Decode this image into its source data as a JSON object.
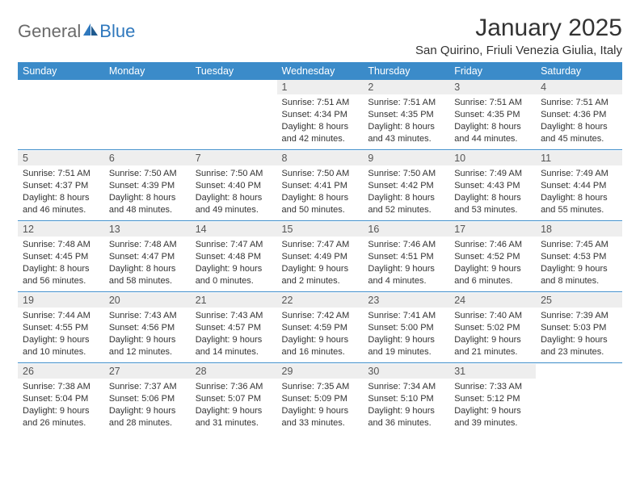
{
  "brand": {
    "part1": "General",
    "part2": "Blue"
  },
  "title": "January 2025",
  "location": "San Quirino, Friuli Venezia Giulia, Italy",
  "columns": [
    "Sunday",
    "Monday",
    "Tuesday",
    "Wednesday",
    "Thursday",
    "Friday",
    "Saturday"
  ],
  "colors": {
    "header_bg": "#3b8bc9",
    "header_text": "#ffffff",
    "daynum_bg": "#eeeeee",
    "text": "#333333",
    "rule": "#3b8bc9"
  },
  "weeks": [
    [
      null,
      null,
      null,
      {
        "n": "1",
        "sunrise": "7:51 AM",
        "sunset": "4:34 PM",
        "dl1": "8 hours",
        "dl2": "and 42 minutes."
      },
      {
        "n": "2",
        "sunrise": "7:51 AM",
        "sunset": "4:35 PM",
        "dl1": "8 hours",
        "dl2": "and 43 minutes."
      },
      {
        "n": "3",
        "sunrise": "7:51 AM",
        "sunset": "4:35 PM",
        "dl1": "8 hours",
        "dl2": "and 44 minutes."
      },
      {
        "n": "4",
        "sunrise": "7:51 AM",
        "sunset": "4:36 PM",
        "dl1": "8 hours",
        "dl2": "and 45 minutes."
      }
    ],
    [
      {
        "n": "5",
        "sunrise": "7:51 AM",
        "sunset": "4:37 PM",
        "dl1": "8 hours",
        "dl2": "and 46 minutes."
      },
      {
        "n": "6",
        "sunrise": "7:50 AM",
        "sunset": "4:39 PM",
        "dl1": "8 hours",
        "dl2": "and 48 minutes."
      },
      {
        "n": "7",
        "sunrise": "7:50 AM",
        "sunset": "4:40 PM",
        "dl1": "8 hours",
        "dl2": "and 49 minutes."
      },
      {
        "n": "8",
        "sunrise": "7:50 AM",
        "sunset": "4:41 PM",
        "dl1": "8 hours",
        "dl2": "and 50 minutes."
      },
      {
        "n": "9",
        "sunrise": "7:50 AM",
        "sunset": "4:42 PM",
        "dl1": "8 hours",
        "dl2": "and 52 minutes."
      },
      {
        "n": "10",
        "sunrise": "7:49 AM",
        "sunset": "4:43 PM",
        "dl1": "8 hours",
        "dl2": "and 53 minutes."
      },
      {
        "n": "11",
        "sunrise": "7:49 AM",
        "sunset": "4:44 PM",
        "dl1": "8 hours",
        "dl2": "and 55 minutes."
      }
    ],
    [
      {
        "n": "12",
        "sunrise": "7:48 AM",
        "sunset": "4:45 PM",
        "dl1": "8 hours",
        "dl2": "and 56 minutes."
      },
      {
        "n": "13",
        "sunrise": "7:48 AM",
        "sunset": "4:47 PM",
        "dl1": "8 hours",
        "dl2": "and 58 minutes."
      },
      {
        "n": "14",
        "sunrise": "7:47 AM",
        "sunset": "4:48 PM",
        "dl1": "9 hours",
        "dl2": "and 0 minutes."
      },
      {
        "n": "15",
        "sunrise": "7:47 AM",
        "sunset": "4:49 PM",
        "dl1": "9 hours",
        "dl2": "and 2 minutes."
      },
      {
        "n": "16",
        "sunrise": "7:46 AM",
        "sunset": "4:51 PM",
        "dl1": "9 hours",
        "dl2": "and 4 minutes."
      },
      {
        "n": "17",
        "sunrise": "7:46 AM",
        "sunset": "4:52 PM",
        "dl1": "9 hours",
        "dl2": "and 6 minutes."
      },
      {
        "n": "18",
        "sunrise": "7:45 AM",
        "sunset": "4:53 PM",
        "dl1": "9 hours",
        "dl2": "and 8 minutes."
      }
    ],
    [
      {
        "n": "19",
        "sunrise": "7:44 AM",
        "sunset": "4:55 PM",
        "dl1": "9 hours",
        "dl2": "and 10 minutes."
      },
      {
        "n": "20",
        "sunrise": "7:43 AM",
        "sunset": "4:56 PM",
        "dl1": "9 hours",
        "dl2": "and 12 minutes."
      },
      {
        "n": "21",
        "sunrise": "7:43 AM",
        "sunset": "4:57 PM",
        "dl1": "9 hours",
        "dl2": "and 14 minutes."
      },
      {
        "n": "22",
        "sunrise": "7:42 AM",
        "sunset": "4:59 PM",
        "dl1": "9 hours",
        "dl2": "and 16 minutes."
      },
      {
        "n": "23",
        "sunrise": "7:41 AM",
        "sunset": "5:00 PM",
        "dl1": "9 hours",
        "dl2": "and 19 minutes."
      },
      {
        "n": "24",
        "sunrise": "7:40 AM",
        "sunset": "5:02 PM",
        "dl1": "9 hours",
        "dl2": "and 21 minutes."
      },
      {
        "n": "25",
        "sunrise": "7:39 AM",
        "sunset": "5:03 PM",
        "dl1": "9 hours",
        "dl2": "and 23 minutes."
      }
    ],
    [
      {
        "n": "26",
        "sunrise": "7:38 AM",
        "sunset": "5:04 PM",
        "dl1": "9 hours",
        "dl2": "and 26 minutes."
      },
      {
        "n": "27",
        "sunrise": "7:37 AM",
        "sunset": "5:06 PM",
        "dl1": "9 hours",
        "dl2": "and 28 minutes."
      },
      {
        "n": "28",
        "sunrise": "7:36 AM",
        "sunset": "5:07 PM",
        "dl1": "9 hours",
        "dl2": "and 31 minutes."
      },
      {
        "n": "29",
        "sunrise": "7:35 AM",
        "sunset": "5:09 PM",
        "dl1": "9 hours",
        "dl2": "and 33 minutes."
      },
      {
        "n": "30",
        "sunrise": "7:34 AM",
        "sunset": "5:10 PM",
        "dl1": "9 hours",
        "dl2": "and 36 minutes."
      },
      {
        "n": "31",
        "sunrise": "7:33 AM",
        "sunset": "5:12 PM",
        "dl1": "9 hours",
        "dl2": "and 39 minutes."
      },
      null
    ]
  ]
}
